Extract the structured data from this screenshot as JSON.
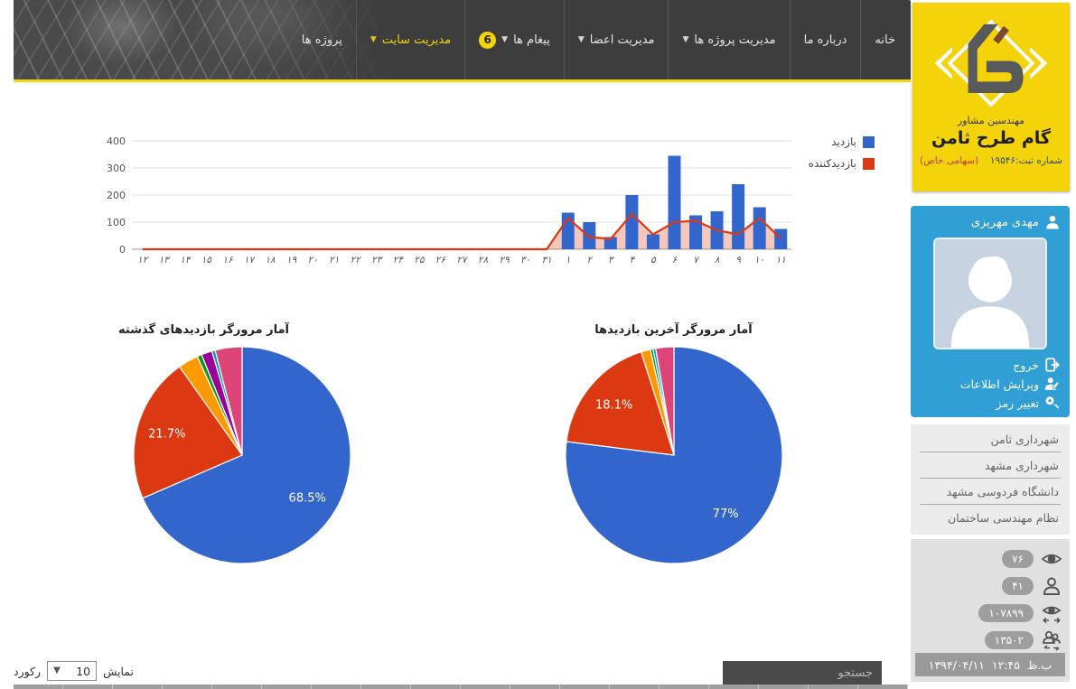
{
  "nav": {
    "badge": "6",
    "items": [
      {
        "label": "خانه",
        "submenu": false
      },
      {
        "label": "درباره ما",
        "submenu": false
      },
      {
        "label": "مدیریت پروژه ها",
        "submenu": true
      },
      {
        "label": "مدیریت اعضا",
        "submenu": true
      },
      {
        "label": "پیغام ها",
        "submenu": true
      },
      {
        "label": "مدیریت سایت",
        "submenu": true
      },
      {
        "label": "پروژه ها",
        "submenu": false
      }
    ]
  },
  "logo": {
    "line1": "مهندسین مشاور",
    "line2": "گام طرح ثامن",
    "reg_no": "شماره ثبت:۱۹۵۴۶",
    "company_type": "(سهامی خاص)"
  },
  "profile": {
    "name": "مهدی مهریزی",
    "menu": [
      {
        "label": "خروج"
      },
      {
        "label": "ویرایش اطلاعات"
      },
      {
        "label": "تغییر رمز"
      }
    ]
  },
  "quick_links": [
    {
      "label": "شهرداری ثامن"
    },
    {
      "label": "شهرداری مشهد"
    },
    {
      "label": "دانشگاه فردوسی مشهد"
    },
    {
      "label": "نظام مهندسی ساختمان"
    }
  ],
  "stats": {
    "items": [
      {
        "value": "۷۶"
      },
      {
        "value": "۴۱"
      },
      {
        "value": "۱۰۷۸۹۹"
      },
      {
        "value": "۱۳۵۰۲"
      }
    ],
    "date": "۱۳۹۴/۰۴/۱۱",
    "time": "۱۲:۴۵",
    "meridiem": "ب.ظ"
  },
  "table_controls": {
    "search_placeholder": "جستجو",
    "show_label": "نمایش",
    "records_label": "رکورد",
    "page_size": "10"
  },
  "colors": {
    "accent_yellow": "#f5d30b",
    "header_dark": "#3d3d3d",
    "profile_blue": "#2f9fd6",
    "chart_blue": "#3366cc",
    "chart_red": "#dc3912"
  },
  "chart_data": [
    {
      "type": "bar",
      "title": "",
      "xlabel": "",
      "ylabel": "",
      "ylim": [
        0,
        400
      ],
      "yticks": [
        0,
        100,
        200,
        300,
        400
      ],
      "grid": true,
      "legend_position": "right",
      "categories": [
        "۱۲",
        "۱۳",
        "۱۴",
        "۱۵",
        "۱۶",
        "۱۷",
        "۱۸",
        "۱۹",
        "۲۰",
        "۲۱",
        "۲۲",
        "۲۳",
        "۲۴",
        "۲۵",
        "۲۶",
        "۲۷",
        "۲۸",
        "۲۹",
        "۳۰",
        "۳۱",
        "۱",
        "۲",
        "۳",
        "۴",
        "۵",
        "۶",
        "۷",
        "۸",
        "۹",
        "۱۰",
        "۱۱"
      ],
      "series": [
        {
          "name": "بازدید",
          "type": "bar",
          "color": "#3366cc",
          "values": [
            0,
            0,
            0,
            0,
            0,
            0,
            0,
            0,
            0,
            0,
            0,
            0,
            0,
            0,
            0,
            0,
            0,
            0,
            0,
            0,
            135,
            100,
            45,
            200,
            55,
            345,
            125,
            140,
            240,
            155,
            75
          ]
        },
        {
          "name": "بازدیدکننده",
          "type": "area-line",
          "color": "#dc3912",
          "fill": "rgba(220,57,18,0.28)",
          "values": [
            0,
            0,
            0,
            0,
            0,
            0,
            0,
            0,
            0,
            0,
            0,
            0,
            0,
            0,
            0,
            0,
            0,
            0,
            0,
            0,
            115,
            45,
            38,
            130,
            55,
            100,
            105,
            70,
            55,
            115,
            40
          ]
        }
      ]
    },
    {
      "type": "pie",
      "title": "آمار مرورگر بازدیدهای گذشته",
      "slices": [
        {
          "value": 68.5,
          "label": "68.5%",
          "color": "#3366cc"
        },
        {
          "value": 21.7,
          "label": "21.7%",
          "color": "#dc3912"
        },
        {
          "value": 3.0,
          "label": "",
          "color": "#ff9900"
        },
        {
          "value": 0.7,
          "label": "",
          "color": "#109618"
        },
        {
          "value": 1.6,
          "label": "",
          "color": "#990099"
        },
        {
          "value": 0.5,
          "label": "",
          "color": "#0099c6"
        },
        {
          "value": 4.0,
          "label": "",
          "color": "#dd4477"
        }
      ]
    },
    {
      "type": "pie",
      "title": "آمار مرورگر آخرین بازدیدها",
      "slices": [
        {
          "value": 77.0,
          "label": "77%",
          "color": "#3366cc"
        },
        {
          "value": 18.1,
          "label": "18.1%",
          "color": "#dc3912"
        },
        {
          "value": 1.4,
          "label": "",
          "color": "#ff9900"
        },
        {
          "value": 0.4,
          "label": "",
          "color": "#109618"
        },
        {
          "value": 0.4,
          "label": "",
          "color": "#0099c6"
        },
        {
          "value": 2.7,
          "label": "",
          "color": "#dd4477"
        }
      ]
    }
  ]
}
